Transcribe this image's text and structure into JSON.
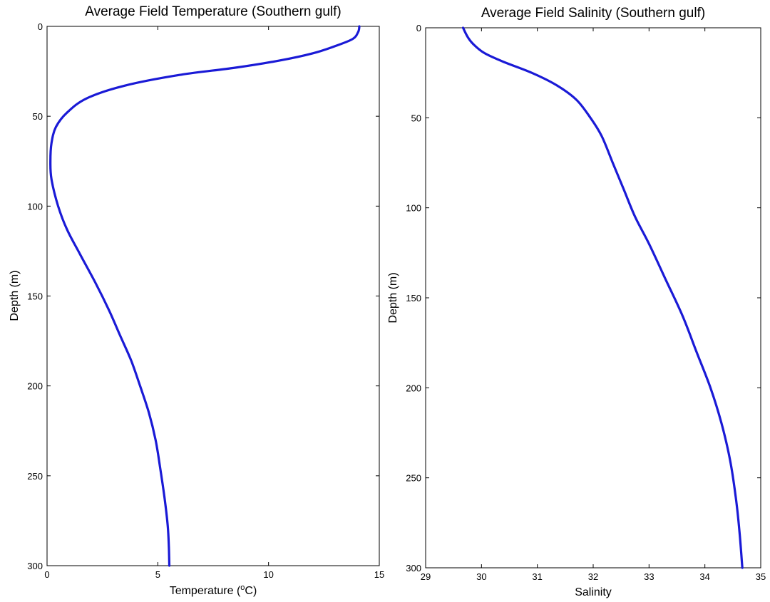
{
  "colors": {
    "line": "#1a1ad6",
    "axis": "#000000",
    "background": "#ffffff"
  },
  "chart_data": [
    {
      "type": "line",
      "title": "Average Field Temperature (Southern gulf)",
      "xlabel": "Temperature (",
      "xlabel_sup": "o",
      "xlabel_suffix": "C)",
      "ylabel": "Depth (m)",
      "xlim": [
        0,
        15
      ],
      "ylim": [
        0,
        300
      ],
      "y_reversed": true,
      "grid": false,
      "xticks": [
        0,
        5,
        10,
        15
      ],
      "xtick_labels": [
        "0",
        "5",
        "10",
        "15"
      ],
      "yticks": [
        0,
        50,
        100,
        150,
        200,
        250,
        300
      ],
      "ytick_labels": [
        "0",
        "50",
        "100",
        "150",
        "200",
        "250",
        "300"
      ],
      "series": [
        {
          "x": [
            14.1,
            14.05,
            13.8,
            13.0,
            12.0,
            10.5,
            8.5,
            6.0,
            3.5,
            1.8,
            0.9,
            0.4,
            0.2,
            0.15,
            0.2,
            0.5,
            0.9,
            1.5,
            2.2,
            2.8,
            3.3,
            3.8,
            4.2,
            4.6,
            4.9,
            5.1,
            5.3,
            5.45,
            5.5,
            5.52
          ],
          "y": [
            0,
            3,
            7,
            11,
            15,
            19,
            23,
            27,
            33,
            40,
            48,
            56,
            65,
            75,
            85,
            100,
            113,
            127,
            143,
            158,
            172,
            186,
            200,
            215,
            230,
            245,
            262,
            278,
            290,
            300
          ]
        }
      ]
    },
    {
      "type": "line",
      "title": "Average Field Salinity (Southern gulf)",
      "xlabel": "Salinity",
      "ylabel": "Depth (m)",
      "xlim": [
        29,
        35
      ],
      "ylim": [
        0,
        300
      ],
      "y_reversed": true,
      "grid": false,
      "xticks": [
        29,
        30,
        31,
        32,
        33,
        34,
        35
      ],
      "xtick_labels": [
        "29",
        "30",
        "31",
        "32",
        "33",
        "34",
        "35"
      ],
      "yticks": [
        0,
        50,
        100,
        150,
        200,
        250,
        300
      ],
      "ytick_labels": [
        "0",
        "50",
        "100",
        "150",
        "200",
        "250",
        "300"
      ],
      "series": [
        {
          "x": [
            29.67,
            29.75,
            29.85,
            30.05,
            30.4,
            30.9,
            31.35,
            31.7,
            31.95,
            32.15,
            32.35,
            32.55,
            32.75,
            33.0,
            33.3,
            33.6,
            33.85,
            34.1,
            34.3,
            34.45,
            34.55,
            34.62,
            34.67
          ],
          "y": [
            0,
            5,
            9,
            14,
            19,
            25,
            32,
            40,
            50,
            60,
            75,
            90,
            105,
            120,
            140,
            160,
            180,
            200,
            220,
            240,
            260,
            280,
            300
          ]
        }
      ]
    }
  ]
}
